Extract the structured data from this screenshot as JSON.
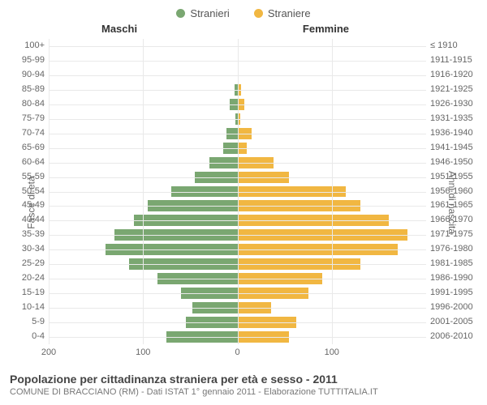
{
  "chart": {
    "type": "population-pyramid",
    "background_color": "#ffffff",
    "grid_color": "#e9e9e9",
    "center_line_color": "#aaaaaa",
    "legend": [
      {
        "label": "Stranieri",
        "color": "#7aa771"
      },
      {
        "label": "Straniere",
        "color": "#f1b742"
      }
    ],
    "col_headers": {
      "left": "Maschi",
      "right": "Femmine"
    },
    "y_axis_left_title": "Fasce di età",
    "y_axis_right_title": "Anni di nascita",
    "xlim": 200,
    "xticks_left": [
      200,
      100,
      0
    ],
    "xticks_right": [
      0,
      100
    ],
    "bar_colors": {
      "left": "#7aa771",
      "right": "#f1b742"
    },
    "fontsize_tick": 11,
    "fontsize_header": 13,
    "rows": [
      {
        "age": "100+",
        "birth": "≤ 1910",
        "m": 0,
        "f": 0
      },
      {
        "age": "95-99",
        "birth": "1911-1915",
        "m": 0,
        "f": 0
      },
      {
        "age": "90-94",
        "birth": "1916-1920",
        "m": 0,
        "f": 0
      },
      {
        "age": "85-89",
        "birth": "1921-1925",
        "m": 3,
        "f": 4
      },
      {
        "age": "80-84",
        "birth": "1926-1930",
        "m": 8,
        "f": 7
      },
      {
        "age": "75-79",
        "birth": "1931-1935",
        "m": 2,
        "f": 3
      },
      {
        "age": "70-74",
        "birth": "1936-1940",
        "m": 12,
        "f": 15
      },
      {
        "age": "65-69",
        "birth": "1941-1945",
        "m": 15,
        "f": 10
      },
      {
        "age": "60-64",
        "birth": "1946-1950",
        "m": 30,
        "f": 38
      },
      {
        "age": "55-59",
        "birth": "1951-1955",
        "m": 45,
        "f": 55
      },
      {
        "age": "50-54",
        "birth": "1956-1960",
        "m": 70,
        "f": 115
      },
      {
        "age": "45-49",
        "birth": "1961-1965",
        "m": 95,
        "f": 130
      },
      {
        "age": "40-44",
        "birth": "1966-1970",
        "m": 110,
        "f": 160
      },
      {
        "age": "35-39",
        "birth": "1971-1975",
        "m": 130,
        "f": 180
      },
      {
        "age": "30-34",
        "birth": "1976-1980",
        "m": 140,
        "f": 170
      },
      {
        "age": "25-29",
        "birth": "1981-1985",
        "m": 115,
        "f": 130
      },
      {
        "age": "20-24",
        "birth": "1986-1990",
        "m": 85,
        "f": 90
      },
      {
        "age": "15-19",
        "birth": "1991-1995",
        "m": 60,
        "f": 75
      },
      {
        "age": "10-14",
        "birth": "1996-2000",
        "m": 48,
        "f": 36
      },
      {
        "age": "5-9",
        "birth": "2001-2005",
        "m": 55,
        "f": 62
      },
      {
        "age": "0-4",
        "birth": "2006-2010",
        "m": 75,
        "f": 55
      }
    ]
  },
  "footer": {
    "title": "Popolazione per cittadinanza straniera per età e sesso - 2011",
    "subtitle": "COMUNE DI BRACCIANO (RM) - Dati ISTAT 1° gennaio 2011 - Elaborazione TUTTITALIA.IT"
  }
}
